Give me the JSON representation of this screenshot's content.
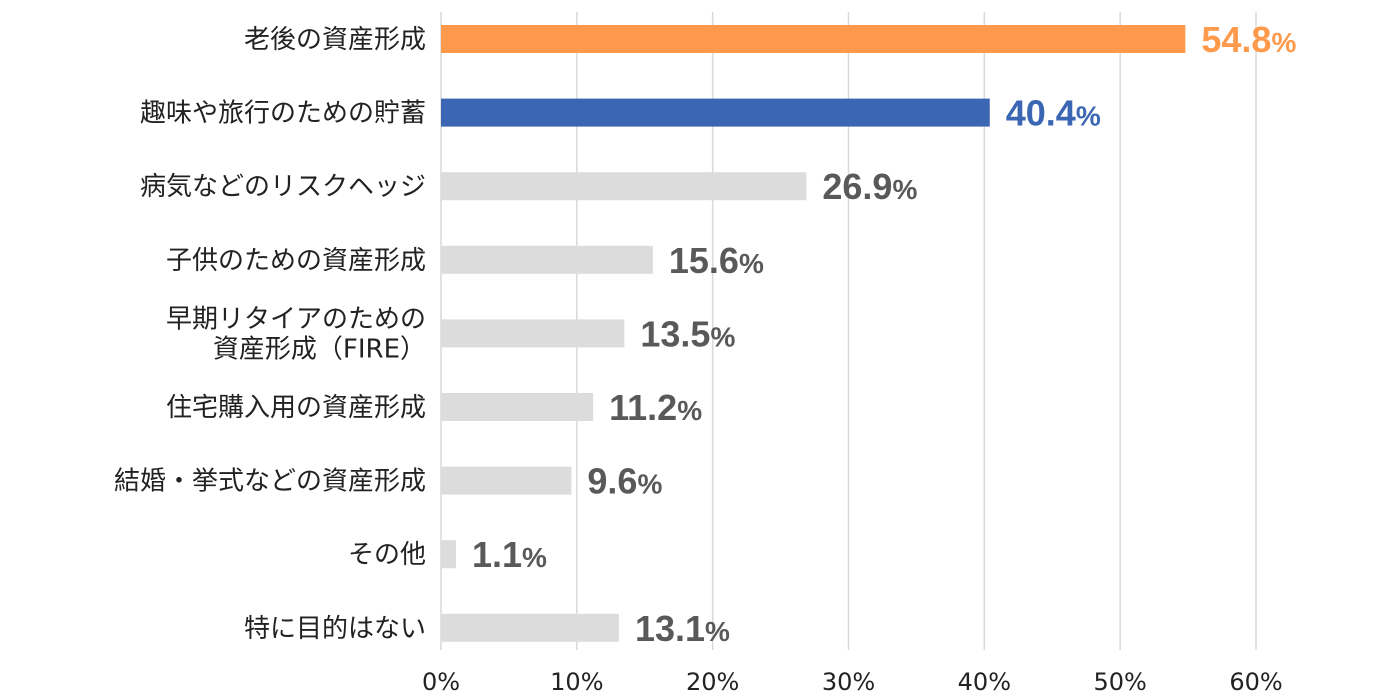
{
  "chart_data": {
    "type": "bar",
    "orientation": "horizontal",
    "title": "",
    "xlabel": "",
    "ylabel": "",
    "xlim": [
      0,
      60
    ],
    "x_ticks": [
      0,
      10,
      20,
      30,
      40,
      50,
      60
    ],
    "x_tick_labels": [
      "0%",
      "10%",
      "20%",
      "30%",
      "40%",
      "50%",
      "60%"
    ],
    "grid": "vertical",
    "legend": "none",
    "categories": [
      [
        "老後の資産形成"
      ],
      [
        "趣味や旅行のための貯蓄"
      ],
      [
        "病気などのリスクヘッジ"
      ],
      [
        "子供のための資産形成"
      ],
      [
        "早期リタイアのための",
        "資産形成（FIRE）"
      ],
      [
        "住宅購入用の資産形成"
      ],
      [
        "結婚・挙式などの資産形成"
      ],
      [
        "その他"
      ],
      [
        "特に目的はない"
      ]
    ],
    "values": [
      54.8,
      40.4,
      26.9,
      15.6,
      13.5,
      11.2,
      9.6,
      1.1,
      13.1
    ],
    "value_labels": [
      "54.8",
      "40.4",
      "26.9",
      "15.6",
      "13.5",
      "11.2",
      "9.6",
      "1.1",
      "13.1"
    ],
    "unit": "%",
    "bar_colors": [
      "#FF9A4D",
      "#3A66B4",
      "#DCDCDC",
      "#DCDCDC",
      "#DCDCDC",
      "#DCDCDC",
      "#DCDCDC",
      "#DCDCDC",
      "#DCDCDC"
    ],
    "label_colors": [
      "#FF9A4D",
      "#3A66B4",
      "#595959",
      "#595959",
      "#595959",
      "#595959",
      "#595959",
      "#595959",
      "#595959"
    ]
  }
}
